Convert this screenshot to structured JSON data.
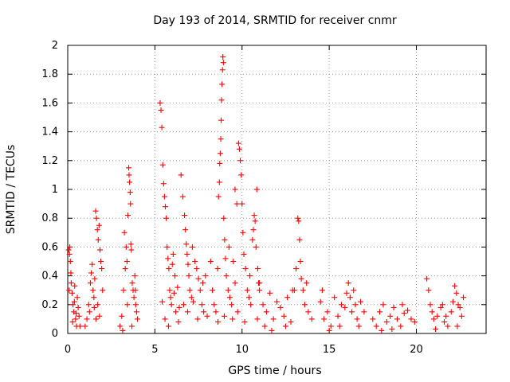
{
  "chart_data": {
    "type": "scatter",
    "title": "Day 193 of 2014, SRMTID for receiver cnmr",
    "xlabel": "GPS time / hours",
    "ylabel": "SRMTID / TECUs",
    "xlim": [
      0,
      24
    ],
    "ylim": [
      0,
      2
    ],
    "x_ticks": [
      0,
      5,
      10,
      15,
      20
    ],
    "x_tick_labels": [
      "0",
      "5",
      "10",
      "15",
      "20"
    ],
    "y_ticks": [
      0,
      0.2,
      0.4,
      0.6,
      0.8,
      1,
      1.2,
      1.4,
      1.6,
      1.8,
      2
    ],
    "y_tick_labels": [
      "0",
      "0.2",
      "0.4",
      "0.6",
      "0.8",
      "1",
      "1.2",
      "1.4",
      "1.6",
      "1.8",
      "2"
    ],
    "grid": true,
    "marker": "+",
    "color": "#ff0000",
    "series": [
      {
        "name": "cnmr",
        "points": [
          [
            0.05,
            0.58
          ],
          [
            0.1,
            0.55
          ],
          [
            0.12,
            0.6
          ],
          [
            0.15,
            0.5
          ],
          [
            0.2,
            0.35
          ],
          [
            0.25,
            0.28
          ],
          [
            0.3,
            0.2
          ],
          [
            0.35,
            0.15
          ],
          [
            0.4,
            0.33
          ],
          [
            0.45,
            0.1
          ],
          [
            0.5,
            0.05
          ],
          [
            0.55,
            0.25
          ],
          [
            0.6,
            0.18
          ],
          [
            0.65,
            0.12
          ],
          [
            0.7,
            0.05
          ],
          [
            0.08,
            0.3
          ],
          [
            0.18,
            0.42
          ],
          [
            0.28,
            0.08
          ],
          [
            0.38,
            0.22
          ],
          [
            0.48,
            0.14
          ],
          [
            1.0,
            0.05
          ],
          [
            1.1,
            0.1
          ],
          [
            1.2,
            0.2
          ],
          [
            1.3,
            0.35
          ],
          [
            1.35,
            0.42
          ],
          [
            1.4,
            0.48
          ],
          [
            1.45,
            0.3
          ],
          [
            1.5,
            0.25
          ],
          [
            1.55,
            0.38
          ],
          [
            1.6,
            0.85
          ],
          [
            1.65,
            0.8
          ],
          [
            1.7,
            0.72
          ],
          [
            1.75,
            0.65
          ],
          [
            1.8,
            0.75
          ],
          [
            1.85,
            0.58
          ],
          [
            1.9,
            0.5
          ],
          [
            1.95,
            0.45
          ],
          [
            2.0,
            0.3
          ],
          [
            1.25,
            0.15
          ],
          [
            1.52,
            0.18
          ],
          [
            1.62,
            0.1
          ],
          [
            1.72,
            0.2
          ],
          [
            1.82,
            0.12
          ],
          [
            3.0,
            0.05
          ],
          [
            3.1,
            0.12
          ],
          [
            3.2,
            0.3
          ],
          [
            3.25,
            0.7
          ],
          [
            3.3,
            0.45
          ],
          [
            3.35,
            0.6
          ],
          [
            3.4,
            0.5
          ],
          [
            3.45,
            0.82
          ],
          [
            3.5,
            1.15
          ],
          [
            3.52,
            1.1
          ],
          [
            3.55,
            1.05
          ],
          [
            3.58,
            0.98
          ],
          [
            3.6,
            0.9
          ],
          [
            3.62,
            0.62
          ],
          [
            3.65,
            0.58
          ],
          [
            3.7,
            0.35
          ],
          [
            3.75,
            0.3
          ],
          [
            3.8,
            0.25
          ],
          [
            3.85,
            0.4
          ],
          [
            3.9,
            0.2
          ],
          [
            3.95,
            0.15
          ],
          [
            4.0,
            0.1
          ],
          [
            3.15,
            0.02
          ],
          [
            3.42,
            0.2
          ],
          [
            3.68,
            0.05
          ],
          [
            3.88,
            0.3
          ],
          [
            5.3,
            1.6
          ],
          [
            5.35,
            1.55
          ],
          [
            5.4,
            1.43
          ],
          [
            5.45,
            1.17
          ],
          [
            5.5,
            1.04
          ],
          [
            5.55,
            0.95
          ],
          [
            5.6,
            0.88
          ],
          [
            5.65,
            0.8
          ],
          [
            5.7,
            0.6
          ],
          [
            5.75,
            0.52
          ],
          [
            5.8,
            0.45
          ],
          [
            5.85,
            0.3
          ],
          [
            5.9,
            0.25
          ],
          [
            5.95,
            0.2
          ],
          [
            6.0,
            0.48
          ],
          [
            6.05,
            0.55
          ],
          [
            6.1,
            0.28
          ],
          [
            6.2,
            0.15
          ],
          [
            6.3,
            0.32
          ],
          [
            6.4,
            0.18
          ],
          [
            5.42,
            0.22
          ],
          [
            5.58,
            0.1
          ],
          [
            5.78,
            0.05
          ],
          [
            6.15,
            0.4
          ],
          [
            6.35,
            0.08
          ],
          [
            6.5,
            1.1
          ],
          [
            6.6,
            0.95
          ],
          [
            6.7,
            0.82
          ],
          [
            6.75,
            0.72
          ],
          [
            6.8,
            0.62
          ],
          [
            6.85,
            0.55
          ],
          [
            6.9,
            0.48
          ],
          [
            6.95,
            0.4
          ],
          [
            7.0,
            0.3
          ],
          [
            7.1,
            0.25
          ],
          [
            7.2,
            0.22
          ],
          [
            7.3,
            0.5
          ],
          [
            7.4,
            0.45
          ],
          [
            7.5,
            0.38
          ],
          [
            7.6,
            0.3
          ],
          [
            7.7,
            0.2
          ],
          [
            7.8,
            0.15
          ],
          [
            7.9,
            0.4
          ],
          [
            8.0,
            0.12
          ],
          [
            6.65,
            0.2
          ],
          [
            6.88,
            0.15
          ],
          [
            7.15,
            0.6
          ],
          [
            7.45,
            0.1
          ],
          [
            7.75,
            0.35
          ],
          [
            8.2,
            0.5
          ],
          [
            8.3,
            0.3
          ],
          [
            8.4,
            0.2
          ],
          [
            8.5,
            0.15
          ],
          [
            8.6,
            0.45
          ],
          [
            8.65,
            0.95
          ],
          [
            8.7,
            1.05
          ],
          [
            8.72,
            1.18
          ],
          [
            8.75,
            1.25
          ],
          [
            8.78,
            1.35
          ],
          [
            8.8,
            1.48
          ],
          [
            8.82,
            1.62
          ],
          [
            8.85,
            1.73
          ],
          [
            8.88,
            1.83
          ],
          [
            8.9,
            1.92
          ],
          [
            8.93,
            1.88
          ],
          [
            8.95,
            0.8
          ],
          [
            9.0,
            0.65
          ],
          [
            9.05,
            0.52
          ],
          [
            9.1,
            0.4
          ],
          [
            9.2,
            0.3
          ],
          [
            9.3,
            0.25
          ],
          [
            9.4,
            0.2
          ],
          [
            9.5,
            0.5
          ],
          [
            9.6,
            0.35
          ],
          [
            8.62,
            0.08
          ],
          [
            8.98,
            0.12
          ],
          [
            9.25,
            0.6
          ],
          [
            9.45,
            0.1
          ],
          [
            9.6,
            1.0
          ],
          [
            9.7,
            0.9
          ],
          [
            9.8,
            1.32
          ],
          [
            9.85,
            1.28
          ],
          [
            9.9,
            1.2
          ],
          [
            9.95,
            1.1
          ],
          [
            10.0,
            0.9
          ],
          [
            10.05,
            0.7
          ],
          [
            10.1,
            0.55
          ],
          [
            10.2,
            0.45
          ],
          [
            10.3,
            0.3
          ],
          [
            10.4,
            0.25
          ],
          [
            10.5,
            0.2
          ],
          [
            10.6,
            0.65
          ],
          [
            10.65,
            0.72
          ],
          [
            10.7,
            0.82
          ],
          [
            10.75,
            0.78
          ],
          [
            10.8,
            0.6
          ],
          [
            10.85,
            1.0
          ],
          [
            10.9,
            0.45
          ],
          [
            10.95,
            0.35
          ],
          [
            11.0,
            0.3
          ],
          [
            9.75,
            0.15
          ],
          [
            10.15,
            0.08
          ],
          [
            10.45,
            0.4
          ],
          [
            10.88,
            0.1
          ],
          [
            11.0,
            0.35
          ],
          [
            11.2,
            0.2
          ],
          [
            11.4,
            0.15
          ],
          [
            11.6,
            0.28
          ],
          [
            11.8,
            0.1
          ],
          [
            12.0,
            0.22
          ],
          [
            12.2,
            0.18
          ],
          [
            12.4,
            0.12
          ],
          [
            12.6,
            0.25
          ],
          [
            12.8,
            0.08
          ],
          [
            13.0,
            0.3
          ],
          [
            13.1,
            0.45
          ],
          [
            13.2,
            0.8
          ],
          [
            13.25,
            0.78
          ],
          [
            13.3,
            0.65
          ],
          [
            13.35,
            0.5
          ],
          [
            13.4,
            0.38
          ],
          [
            13.5,
            0.3
          ],
          [
            13.6,
            0.2
          ],
          [
            13.8,
            0.15
          ],
          [
            14.0,
            0.1
          ],
          [
            11.3,
            0.05
          ],
          [
            11.7,
            0.02
          ],
          [
            12.5,
            0.05
          ],
          [
            12.9,
            0.3
          ],
          [
            13.7,
            0.35
          ],
          [
            14.5,
            0.22
          ],
          [
            14.7,
            0.1
          ],
          [
            14.9,
            0.15
          ],
          [
            15.1,
            0.05
          ],
          [
            15.3,
            0.25
          ],
          [
            15.5,
            0.12
          ],
          [
            15.7,
            0.2
          ],
          [
            15.9,
            0.18
          ],
          [
            16.0,
            0.28
          ],
          [
            16.1,
            0.35
          ],
          [
            16.2,
            0.25
          ],
          [
            16.3,
            0.15
          ],
          [
            16.4,
            0.3
          ],
          [
            16.5,
            0.2
          ],
          [
            16.6,
            0.1
          ],
          [
            16.8,
            0.22
          ],
          [
            17.0,
            0.15
          ],
          [
            14.6,
            0.3
          ],
          [
            15.0,
            0.02
          ],
          [
            15.6,
            0.05
          ],
          [
            16.7,
            0.05
          ],
          [
            17.5,
            0.1
          ],
          [
            17.7,
            0.05
          ],
          [
            17.9,
            0.15
          ],
          [
            18.1,
            0.2
          ],
          [
            18.3,
            0.08
          ],
          [
            18.5,
            0.12
          ],
          [
            18.7,
            0.18
          ],
          [
            18.9,
            0.1
          ],
          [
            19.1,
            0.05
          ],
          [
            19.3,
            0.14
          ],
          [
            19.5,
            0.16
          ],
          [
            19.7,
            0.1
          ],
          [
            19.9,
            0.08
          ],
          [
            18.0,
            0.02
          ],
          [
            18.6,
            0.03
          ],
          [
            19.2,
            0.2
          ],
          [
            20.6,
            0.38
          ],
          [
            20.7,
            0.3
          ],
          [
            20.8,
            0.2
          ],
          [
            20.9,
            0.15
          ],
          [
            21.0,
            0.1
          ],
          [
            21.2,
            0.12
          ],
          [
            21.4,
            0.18
          ],
          [
            21.5,
            0.2
          ],
          [
            21.6,
            0.08
          ],
          [
            21.8,
            0.05
          ],
          [
            22.0,
            0.15
          ],
          [
            22.1,
            0.22
          ],
          [
            22.2,
            0.33
          ],
          [
            22.3,
            0.28
          ],
          [
            22.4,
            0.2
          ],
          [
            22.5,
            0.18
          ],
          [
            22.6,
            0.12
          ],
          [
            22.7,
            0.25
          ],
          [
            21.1,
            0.03
          ],
          [
            21.7,
            0.12
          ],
          [
            22.35,
            0.05
          ]
        ]
      }
    ]
  }
}
